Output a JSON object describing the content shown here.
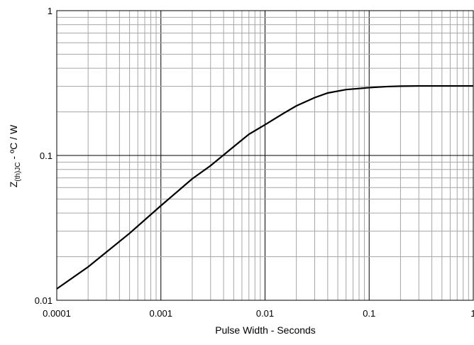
{
  "chart_data": {
    "type": "line",
    "title": "",
    "xlabel": "Pulse Width - Seconds",
    "ylabel_parts": [
      "Z",
      "(th)JC",
      " - ºC / W"
    ],
    "x_scale": "log",
    "y_scale": "log",
    "xlim": [
      0.0001,
      1
    ],
    "ylim": [
      0.01,
      1
    ],
    "grid": true,
    "x_tick_labels": [
      "0.0001",
      "0.001",
      "0.01",
      "0.1",
      "1"
    ],
    "y_tick_labels": [
      "0.01",
      "0.1",
      "1"
    ],
    "series": [
      {
        "x": [
          0.0001,
          0.0002,
          0.0005,
          0.001,
          0.002,
          0.003,
          0.005,
          0.007,
          0.01,
          0.015,
          0.02,
          0.03,
          0.04,
          0.06,
          0.08,
          0.1,
          0.15,
          0.2,
          0.3,
          0.5,
          1
        ],
        "values": [
          0.012,
          0.017,
          0.029,
          0.045,
          0.069,
          0.085,
          0.115,
          0.14,
          0.163,
          0.195,
          0.22,
          0.251,
          0.27,
          0.285,
          0.29,
          0.294,
          0.299,
          0.301,
          0.302,
          0.302,
          0.302
        ],
        "color": "#000000"
      }
    ]
  }
}
